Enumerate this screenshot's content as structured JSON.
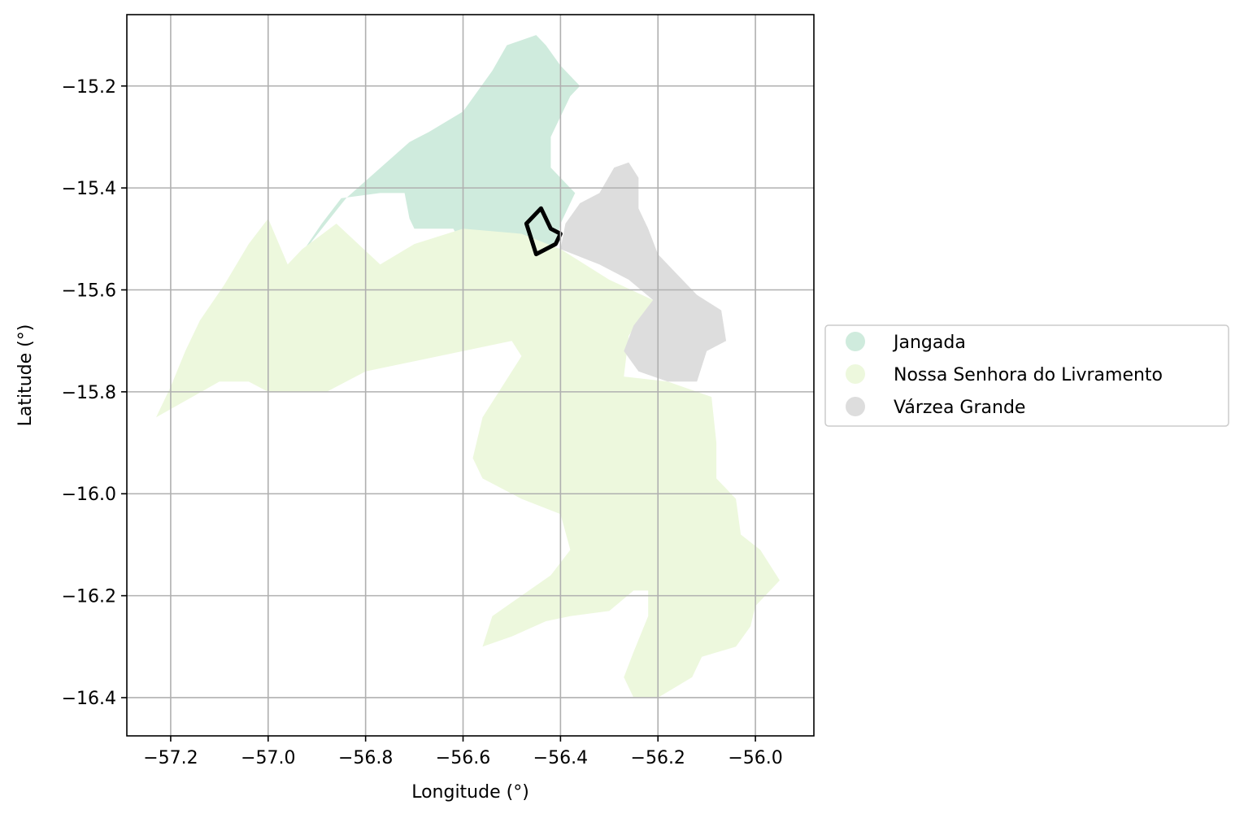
{
  "chart_data": {
    "type": "map",
    "xlabel": "Longitude (°)",
    "ylabel": "Latitude (°)",
    "xlim": [
      -57.29,
      -55.88
    ],
    "ylim": [
      -16.475,
      -15.06
    ],
    "xticks": [
      -57.2,
      -57.0,
      -56.8,
      -56.6,
      -56.4,
      -56.2,
      -56.0
    ],
    "xtick_labels": [
      "−57.2",
      "−57.0",
      "−56.8",
      "−56.6",
      "−56.4",
      "−56.2",
      "−56.0"
    ],
    "yticks": [
      -15.2,
      -15.4,
      -15.6,
      -15.8,
      -16.0,
      -16.2,
      -16.4
    ],
    "ytick_labels": [
      "−15.2",
      "−15.4",
      "−15.6",
      "−15.8",
      "−16.0",
      "−16.2",
      "−16.4"
    ],
    "grid": true,
    "legend_placement": "right-center",
    "regions": [
      {
        "name": "Jangada",
        "color": "#cfebdd",
        "polygon": [
          [
            -56.94,
            -15.54
          ],
          [
            -56.84,
            -15.42
          ],
          [
            -56.71,
            -15.31
          ],
          [
            -56.67,
            -15.29
          ],
          [
            -56.6,
            -15.25
          ],
          [
            -56.54,
            -15.17
          ],
          [
            -56.51,
            -15.12
          ],
          [
            -56.45,
            -15.1
          ],
          [
            -56.43,
            -15.12
          ],
          [
            -56.4,
            -15.16
          ],
          [
            -56.36,
            -15.2
          ],
          [
            -56.38,
            -15.22
          ],
          [
            -56.42,
            -15.3
          ],
          [
            -56.42,
            -15.36
          ],
          [
            -56.37,
            -15.41
          ],
          [
            -56.4,
            -15.47
          ],
          [
            -56.41,
            -15.51
          ],
          [
            -56.43,
            -15.54
          ],
          [
            -56.46,
            -15.52
          ],
          [
            -56.5,
            -15.51
          ],
          [
            -56.56,
            -15.53
          ],
          [
            -56.58,
            -15.55
          ],
          [
            -56.62,
            -15.48
          ],
          [
            -56.7,
            -15.48
          ],
          [
            -56.71,
            -15.46
          ],
          [
            -56.72,
            -15.41
          ],
          [
            -56.77,
            -15.41
          ],
          [
            -56.85,
            -15.42
          ],
          [
            -56.89,
            -15.47
          ],
          [
            -56.94,
            -15.54
          ]
        ]
      },
      {
        "name": "Nossa Senhora do Livramento",
        "color": "#edf8dd",
        "polygon": [
          [
            -57.23,
            -15.85
          ],
          [
            -57.2,
            -15.79
          ],
          [
            -57.17,
            -15.72
          ],
          [
            -57.14,
            -15.66
          ],
          [
            -57.09,
            -15.59
          ],
          [
            -57.04,
            -15.51
          ],
          [
            -57.0,
            -15.46
          ],
          [
            -56.96,
            -15.55
          ],
          [
            -56.93,
            -15.52
          ],
          [
            -56.86,
            -15.47
          ],
          [
            -56.77,
            -15.55
          ],
          [
            -56.7,
            -15.51
          ],
          [
            -56.6,
            -15.48
          ],
          [
            -56.48,
            -15.49
          ],
          [
            -56.4,
            -15.52
          ],
          [
            -56.3,
            -15.58
          ],
          [
            -56.21,
            -15.62
          ],
          [
            -56.26,
            -15.69
          ],
          [
            -56.27,
            -15.77
          ],
          [
            -56.18,
            -15.78
          ],
          [
            -56.09,
            -15.81
          ],
          [
            -56.08,
            -15.9
          ],
          [
            -56.08,
            -15.97
          ],
          [
            -56.04,
            -16.01
          ],
          [
            -56.03,
            -16.08
          ],
          [
            -55.99,
            -16.11
          ],
          [
            -55.95,
            -16.17
          ],
          [
            -56.0,
            -16.22
          ],
          [
            -56.01,
            -16.26
          ],
          [
            -56.04,
            -16.3
          ],
          [
            -56.11,
            -16.32
          ],
          [
            -56.13,
            -16.36
          ],
          [
            -56.2,
            -16.4
          ],
          [
            -56.25,
            -16.4
          ],
          [
            -56.27,
            -16.36
          ],
          [
            -56.25,
            -16.31
          ],
          [
            -56.22,
            -16.24
          ],
          [
            -56.22,
            -16.19
          ],
          [
            -56.25,
            -16.19
          ],
          [
            -56.3,
            -16.23
          ],
          [
            -56.38,
            -16.24
          ],
          [
            -56.43,
            -16.25
          ],
          [
            -56.5,
            -16.28
          ],
          [
            -56.56,
            -16.3
          ],
          [
            -56.54,
            -16.24
          ],
          [
            -56.48,
            -16.2
          ],
          [
            -56.42,
            -16.16
          ],
          [
            -56.38,
            -16.11
          ],
          [
            -56.4,
            -16.04
          ],
          [
            -56.48,
            -16.01
          ],
          [
            -56.56,
            -15.97
          ],
          [
            -56.58,
            -15.93
          ],
          [
            -56.56,
            -15.85
          ],
          [
            -56.52,
            -15.79
          ],
          [
            -56.48,
            -15.73
          ],
          [
            -56.5,
            -15.7
          ],
          [
            -56.6,
            -15.72
          ],
          [
            -56.8,
            -15.76
          ],
          [
            -56.88,
            -15.8
          ],
          [
            -56.94,
            -15.8
          ],
          [
            -57.0,
            -15.8
          ],
          [
            -57.04,
            -15.78
          ],
          [
            -57.1,
            -15.78
          ],
          [
            -57.23,
            -15.85
          ]
        ]
      },
      {
        "name": "Várzea Grande",
        "color": "#dddddd",
        "polygon": [
          [
            -56.4,
            -15.52
          ],
          [
            -56.39,
            -15.47
          ],
          [
            -56.36,
            -15.43
          ],
          [
            -56.32,
            -15.41
          ],
          [
            -56.29,
            -15.36
          ],
          [
            -56.26,
            -15.35
          ],
          [
            -56.24,
            -15.38
          ],
          [
            -56.24,
            -15.44
          ],
          [
            -56.22,
            -15.48
          ],
          [
            -56.2,
            -15.53
          ],
          [
            -56.16,
            -15.57
          ],
          [
            -56.12,
            -15.61
          ],
          [
            -56.07,
            -15.64
          ],
          [
            -56.06,
            -15.7
          ],
          [
            -56.1,
            -15.72
          ],
          [
            -56.12,
            -15.78
          ],
          [
            -56.18,
            -15.78
          ],
          [
            -56.24,
            -15.76
          ],
          [
            -56.27,
            -15.72
          ],
          [
            -56.25,
            -15.67
          ],
          [
            -56.21,
            -15.62
          ],
          [
            -56.26,
            -15.58
          ],
          [
            -56.32,
            -15.55
          ],
          [
            -56.4,
            -15.52
          ]
        ]
      }
    ],
    "highlight": {
      "color": "#000000",
      "polygon": [
        [
          -56.47,
          -15.47
        ],
        [
          -56.44,
          -15.44
        ],
        [
          -56.42,
          -15.48
        ],
        [
          -56.4,
          -15.49
        ],
        [
          -56.41,
          -15.51
        ],
        [
          -56.43,
          -15.52
        ],
        [
          -56.45,
          -15.53
        ],
        [
          -56.46,
          -15.5
        ],
        [
          -56.47,
          -15.47
        ]
      ]
    },
    "legend": [
      {
        "label": "Jangada",
        "color": "#cfebdd"
      },
      {
        "label": "Nossa Senhora do Livramento",
        "color": "#edf8dd"
      },
      {
        "label": "Várzea Grande",
        "color": "#dddddd"
      }
    ]
  }
}
